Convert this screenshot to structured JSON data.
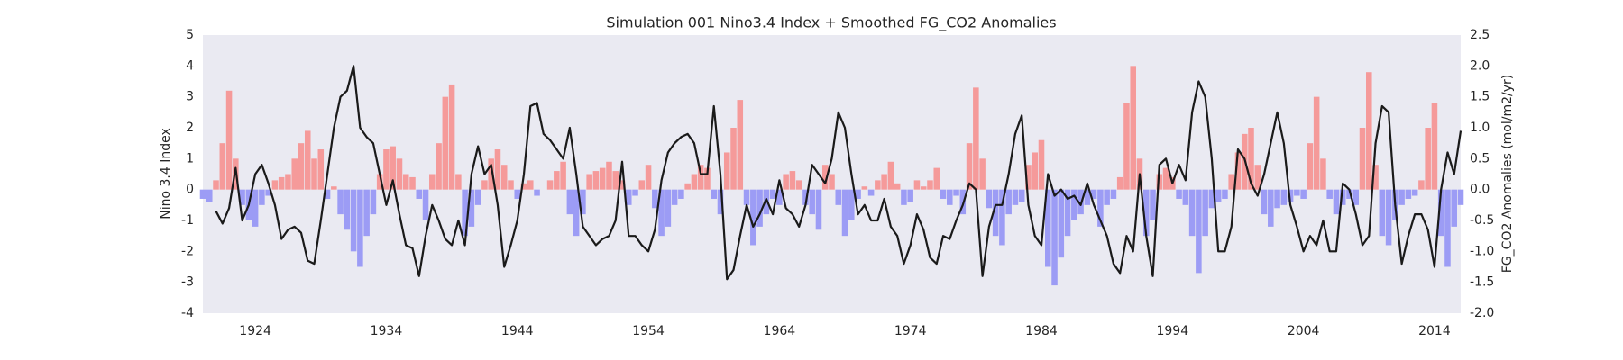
{
  "chart_data": {
    "type": "combo",
    "title": "Simulation 001 Nino3.4 Index + Smoothed FG_CO2 Anomalies",
    "ylabel": "Nino 3.4 Index",
    "y2label": "FG_CO2 Anomalies (mol/m2/yr)",
    "background": "#eaeaf2",
    "grid": false,
    "xlim": [
      1920,
      2016
    ],
    "xticks": [
      1924,
      1934,
      1944,
      1954,
      1964,
      1974,
      1984,
      1994,
      2004,
      2014
    ],
    "ylim": [
      -4,
      5
    ],
    "yticks": [
      -4,
      -3,
      -2,
      -1,
      0,
      1,
      2,
      3,
      4,
      5
    ],
    "y2lim": [
      -2,
      2.5
    ],
    "y2ticks": [
      {
        "value": -2,
        "label": "-2.0"
      },
      -1.5,
      {
        "value": -1,
        "label": "-1.0"
      },
      -0.5,
      {
        "value": 0,
        "label": "0.0"
      },
      0.5,
      {
        "value": 1,
        "label": "1.0"
      },
      1.5,
      {
        "value": 2,
        "label": "2.0"
      },
      2.5
    ],
    "x": [
      1920,
      1920.5,
      1921,
      1921.5,
      1922,
      1922.5,
      1923,
      1923.5,
      1924,
      1924.5,
      1925,
      1925.5,
      1926,
      1926.5,
      1927,
      1927.5,
      1928,
      1928.5,
      1929,
      1929.5,
      1930,
      1930.5,
      1931,
      1931.5,
      1932,
      1932.5,
      1933,
      1933.5,
      1934,
      1934.5,
      1935,
      1935.5,
      1936,
      1936.5,
      1937,
      1937.5,
      1938,
      1938.5,
      1939,
      1939.5,
      1940,
      1940.5,
      1941,
      1941.5,
      1942,
      1942.5,
      1943,
      1943.5,
      1944,
      1944.5,
      1945,
      1945.5,
      1946,
      1946.5,
      1947,
      1947.5,
      1948,
      1948.5,
      1949,
      1949.5,
      1950,
      1950.5,
      1951,
      1951.5,
      1952,
      1952.5,
      1953,
      1953.5,
      1954,
      1954.5,
      1955,
      1955.5,
      1956,
      1956.5,
      1957,
      1957.5,
      1958,
      1958.5,
      1959,
      1959.5,
      1960,
      1960.5,
      1961,
      1961.5,
      1962,
      1962.5,
      1963,
      1963.5,
      1964,
      1964.5,
      1965,
      1965.5,
      1966,
      1966.5,
      1967,
      1967.5,
      1968,
      1968.5,
      1969,
      1969.5,
      1970,
      1970.5,
      1971,
      1971.5,
      1972,
      1972.5,
      1973,
      1973.5,
      1974,
      1974.5,
      1975,
      1975.5,
      1976,
      1976.5,
      1977,
      1977.5,
      1978,
      1978.5,
      1979,
      1979.5,
      1980,
      1980.5,
      1981,
      1981.5,
      1982,
      1982.5,
      1983,
      1983.5,
      1984,
      1984.5,
      1985,
      1985.5,
      1986,
      1986.5,
      1987,
      1987.5,
      1988,
      1988.5,
      1989,
      1989.5,
      1990,
      1990.5,
      1991,
      1991.5,
      1992,
      1992.5,
      1993,
      1993.5,
      1994,
      1994.5,
      1995,
      1995.5,
      1996,
      1996.5,
      1997,
      1997.5,
      1998,
      1998.5,
      1999,
      1999.5,
      2000,
      2000.5,
      2001,
      2001.5,
      2002,
      2002.5,
      2003,
      2003.5,
      2004,
      2004.5,
      2005,
      2005.5,
      2006,
      2006.5,
      2007,
      2007.5,
      2008,
      2008.5,
      2009,
      2009.5,
      2010,
      2010.5,
      2011,
      2011.5,
      2012,
      2012.5,
      2013,
      2013.5,
      2014,
      2014.5,
      2015,
      2015.5,
      2016
    ],
    "series": [
      {
        "type": "bar",
        "positive_color": "#f59a9a",
        "negative_color": "#9c9cf5",
        "values": [
          -0.3,
          -0.4,
          0.3,
          1.5,
          3.2,
          1.0,
          -0.5,
          -1.0,
          -1.2,
          -0.5,
          -0.2,
          0.3,
          0.4,
          0.5,
          1.0,
          1.5,
          1.9,
          1.0,
          1.3,
          -0.3,
          0.1,
          -0.8,
          -1.3,
          -2.0,
          -2.5,
          -1.5,
          -0.8,
          0.5,
          1.3,
          1.4,
          1.0,
          0.5,
          0.4,
          -0.3,
          -1.0,
          0.5,
          1.5,
          3.0,
          3.4,
          0.5,
          -1.5,
          -1.2,
          -0.5,
          0.3,
          1.0,
          1.3,
          0.8,
          0.3,
          -0.3,
          0.2,
          0.3,
          -0.2,
          0.0,
          0.3,
          0.6,
          0.9,
          -0.8,
          -1.5,
          -0.8,
          0.5,
          0.6,
          0.7,
          0.9,
          0.6,
          0.3,
          -0.5,
          -0.2,
          0.3,
          0.8,
          -0.6,
          -1.5,
          -1.2,
          -0.5,
          -0.3,
          0.2,
          0.5,
          0.8,
          0.7,
          -0.3,
          -0.8,
          1.2,
          2.0,
          2.9,
          -0.5,
          -1.8,
          -1.2,
          -0.8,
          -0.3,
          -0.5,
          0.5,
          0.6,
          0.3,
          -0.5,
          -0.8,
          -1.3,
          0.8,
          0.5,
          -0.5,
          -1.5,
          -1.0,
          -0.3,
          0.1,
          -0.2,
          0.3,
          0.5,
          0.9,
          0.2,
          -0.5,
          -0.4,
          0.3,
          0.1,
          0.3,
          0.7,
          -0.3,
          -0.5,
          -0.2,
          -0.8,
          1.5,
          3.3,
          1.0,
          -0.6,
          -1.5,
          -1.8,
          -0.8,
          -0.5,
          -0.4,
          0.8,
          1.2,
          1.6,
          -2.5,
          -3.1,
          -2.2,
          -1.5,
          -1.0,
          -0.8,
          -0.5,
          -0.3,
          -1.2,
          -0.5,
          -0.3,
          0.4,
          2.8,
          4.0,
          1.0,
          -1.5,
          -1.0,
          0.5,
          0.7,
          0.4,
          -0.3,
          -0.5,
          -1.5,
          -2.7,
          -1.5,
          -0.6,
          -0.4,
          -0.3,
          0.5,
          1.2,
          1.8,
          2.0,
          0.8,
          -0.8,
          -1.2,
          -0.6,
          -0.5,
          -0.4,
          -0.2,
          -0.3,
          1.5,
          3.0,
          1.0,
          -0.3,
          -0.8,
          -0.5,
          -0.3,
          -0.5,
          2.0,
          3.8,
          0.8,
          -1.5,
          -1.8,
          -1.0,
          -0.5,
          -0.3,
          -0.2,
          0.3,
          2.0,
          2.8,
          -1.5,
          -2.5,
          -1.2,
          -0.5
        ]
      },
      {
        "type": "line",
        "axis": "y2",
        "color": "#1a1a1a",
        "values": [
          null,
          null,
          -0.35,
          -0.55,
          -0.3,
          0.35,
          -0.5,
          -0.25,
          0.25,
          0.4,
          0.1,
          -0.25,
          -0.8,
          -0.65,
          -0.6,
          -0.7,
          -1.15,
          -1.2,
          -0.5,
          0.25,
          1.0,
          1.5,
          1.6,
          2.0,
          1.0,
          0.85,
          0.75,
          0.25,
          -0.25,
          0.15,
          -0.4,
          -0.9,
          -0.95,
          -1.4,
          -0.75,
          -0.25,
          -0.5,
          -0.8,
          -0.9,
          -0.5,
          -0.9,
          0.25,
          0.7,
          0.25,
          0.4,
          -0.25,
          -1.25,
          -0.9,
          -0.5,
          0.25,
          1.35,
          1.4,
          0.9,
          0.8,
          0.65,
          0.5,
          1.0,
          0.25,
          -0.6,
          -0.75,
          -0.9,
          -0.8,
          -0.75,
          -0.5,
          0.45,
          -0.75,
          -0.75,
          -0.9,
          -1.0,
          -0.65,
          0.15,
          0.6,
          0.75,
          0.85,
          0.9,
          0.75,
          0.25,
          0.25,
          1.35,
          0.25,
          -1.45,
          -1.3,
          -0.75,
          -0.25,
          -0.6,
          -0.4,
          -0.15,
          -0.4,
          0.15,
          -0.3,
          -0.4,
          -0.6,
          -0.25,
          0.4,
          0.25,
          0.1,
          0.5,
          1.25,
          1.0,
          0.25,
          -0.4,
          -0.25,
          -0.5,
          -0.5,
          -0.15,
          -0.6,
          -0.75,
          -1.2,
          -0.9,
          -0.4,
          -0.65,
          -1.1,
          -1.2,
          -0.75,
          -0.8,
          -0.5,
          -0.25,
          0.1,
          0.0,
          -1.4,
          -0.6,
          -0.25,
          -0.25,
          0.25,
          0.9,
          1.2,
          -0.25,
          -0.75,
          -0.9,
          0.25,
          -0.1,
          0.0,
          -0.15,
          -0.1,
          -0.25,
          0.1,
          -0.25,
          -0.5,
          -0.75,
          -1.2,
          -1.35,
          -0.75,
          -1.0,
          0.25,
          -0.75,
          -1.4,
          0.4,
          0.5,
          0.1,
          0.4,
          0.15,
          1.25,
          1.75,
          1.5,
          0.5,
          -1.0,
          -1.0,
          -0.6,
          0.65,
          0.5,
          0.1,
          -0.1,
          0.25,
          0.75,
          1.25,
          0.75,
          -0.25,
          -0.6,
          -1.0,
          -0.75,
          -0.9,
          -0.5,
          -1.0,
          -1.0,
          0.1,
          0.0,
          -0.4,
          -0.9,
          -0.75,
          0.75,
          1.35,
          1.25,
          -0.25,
          -1.2,
          -0.75,
          -0.4,
          -0.4,
          -0.65,
          -1.25,
          0.0,
          0.6,
          0.25,
          0.95
        ]
      }
    ]
  }
}
